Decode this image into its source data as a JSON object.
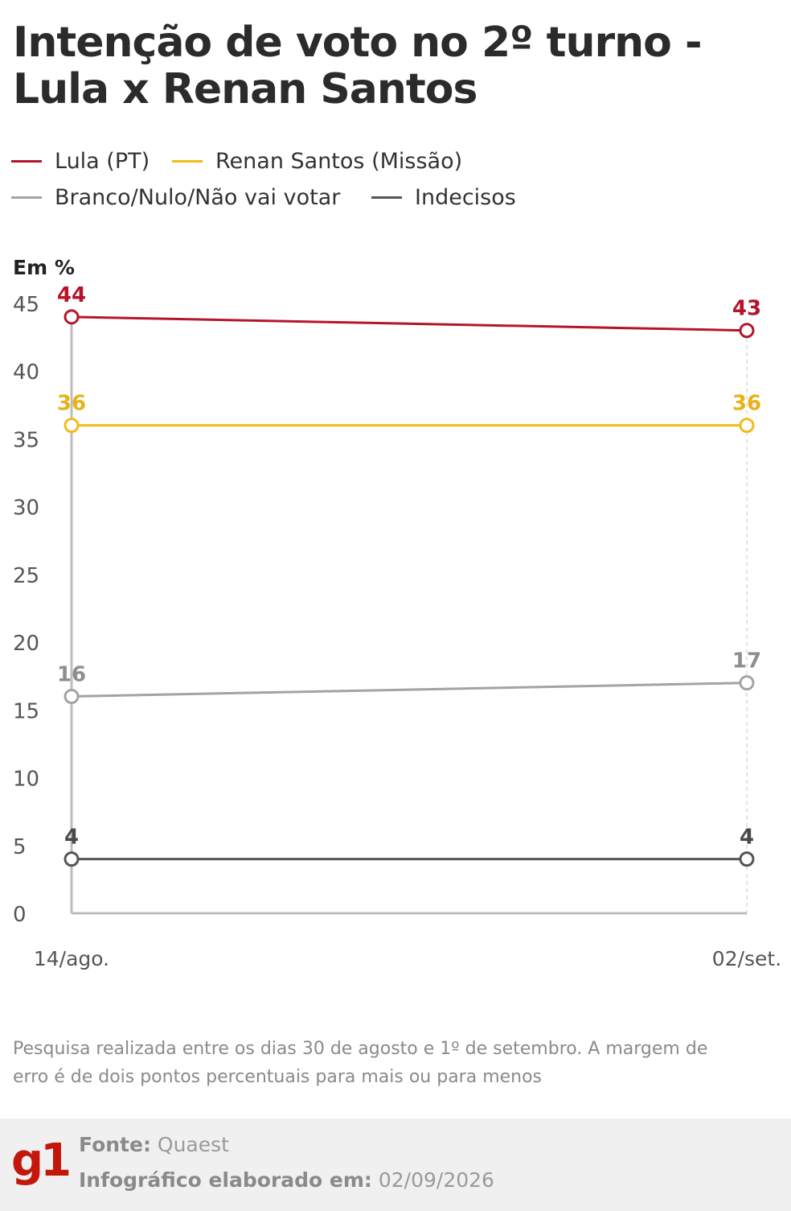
{
  "title_line1": "Intenção de voto no 2º turno -",
  "title_line2": "Lula x Renan Santos",
  "legend": [
    {
      "label": "Lula (PT)",
      "color": "#b5152b"
    },
    {
      "label": "Renan Santos (Missão)",
      "color": "#f1bc1a"
    },
    {
      "label": "Branco/Nulo/Não vai votar",
      "color": "#a3a3a3"
    },
    {
      "label": "Indecisos",
      "color": "#555555"
    }
  ],
  "unit_label": "Em %",
  "note": "Pesquisa realizada entre os dias 30 de agosto e 1º de setembro. A margem de erro é de dois pontos percentuais para mais ou para menos",
  "footer": {
    "logo": "g1",
    "source_label": "Fonte:",
    "source_value": "Quaest",
    "made_label": "Infográfico elaborado em:",
    "made_value": "02/09/2026"
  },
  "chart_data": {
    "type": "line",
    "x": [
      "14/ago.",
      "02/set."
    ],
    "ylim": [
      0,
      45
    ],
    "yticks": [
      0,
      5,
      10,
      15,
      20,
      25,
      30,
      35,
      40,
      45
    ],
    "grid": false,
    "legend_position": "top-left",
    "series": [
      {
        "name": "Lula (PT)",
        "values": [
          44,
          43
        ],
        "color": "#b5152b"
      },
      {
        "name": "Renan Santos (Missão)",
        "values": [
          36,
          36
        ],
        "color": "#f1bc1a"
      },
      {
        "name": "Branco/Nulo/Não vai votar",
        "values": [
          16,
          17
        ],
        "color": "#a3a3a3"
      },
      {
        "name": "Indecisos",
        "values": [
          4,
          4
        ],
        "color": "#555555"
      }
    ]
  }
}
